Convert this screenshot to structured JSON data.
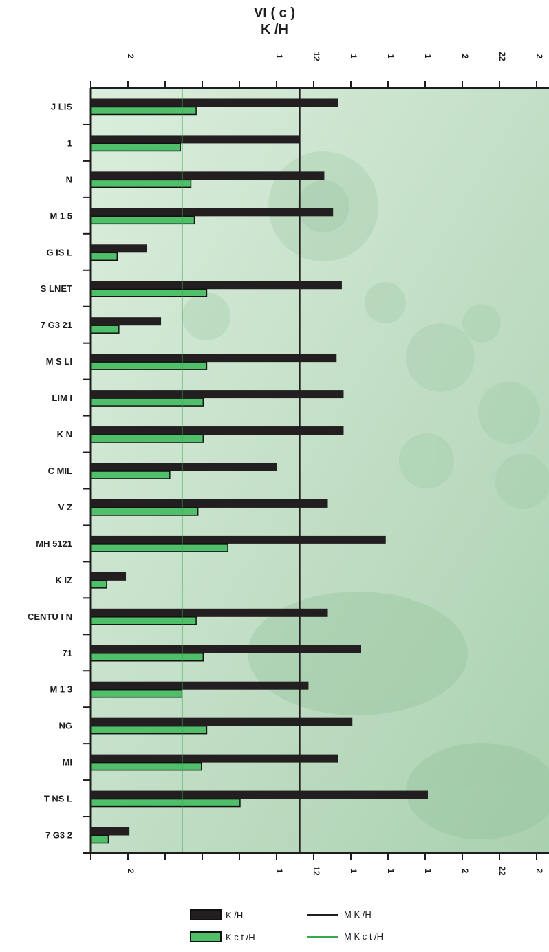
{
  "title": {
    "line1": "VI   (  c     )",
    "line2": "K  /H"
  },
  "colors": {
    "dark_bar": "#231f20",
    "green_bar": "#4fbf6a",
    "green_line": "#3aa84f",
    "axis": "#1d1d1d",
    "photo_tint": "#cfe6d2"
  },
  "legend": {
    "dark": "K  /H",
    "green": "K    c  t  /H",
    "mean_dark": "M      K  /H",
    "mean_green": "M      K   c  t  /H"
  },
  "chart_data": {
    "type": "bar",
    "orientation": "horizontal",
    "xlim": [
      0,
      12.5
    ],
    "tick_labels": [
      "",
      "2",
      "",
      "",
      "",
      "1",
      "12",
      "1",
      "1",
      "1",
      "2",
      "22",
      "2"
    ],
    "categories": [
      "J  LIS",
      "1",
      "N",
      "M    1  5",
      "G    IS  L",
      "S   LNET",
      "7  G3  21",
      "M   S   LI",
      "LIM   I",
      "K          N",
      "C   MIL",
      "V        Z",
      "MH 5121",
      "K     IZ",
      "CENTU   I   N",
      "71",
      "M    1  3",
      "NG",
      "MI",
      "T     NS   L",
      "7  G3  2"
    ],
    "series": [
      {
        "name": "K  /H",
        "color": "#231f20",
        "values": [
          7.05,
          5.95,
          6.65,
          6.9,
          1.6,
          7.15,
          2.0,
          7.0,
          7.2,
          7.2,
          5.3,
          6.75,
          8.4,
          1.0,
          6.75,
          7.7,
          6.2,
          7.45,
          7.05,
          9.6,
          1.1
        ]
      },
      {
        "name": "K    c  t  /H",
        "color": "#4fbf6a",
        "values": [
          3.0,
          2.55,
          2.85,
          2.95,
          0.75,
          3.3,
          0.8,
          3.3,
          3.2,
          3.2,
          2.25,
          3.05,
          3.9,
          0.45,
          3.0,
          3.2,
          2.6,
          3.3,
          3.15,
          4.25,
          0.5
        ]
      }
    ],
    "mean_lines": [
      {
        "name": "M      K  /H",
        "value": 5.95,
        "color": "#231f20"
      },
      {
        "name": "M      K   c  t  /H",
        "value": 2.6,
        "color": "#3aa84f"
      }
    ]
  }
}
